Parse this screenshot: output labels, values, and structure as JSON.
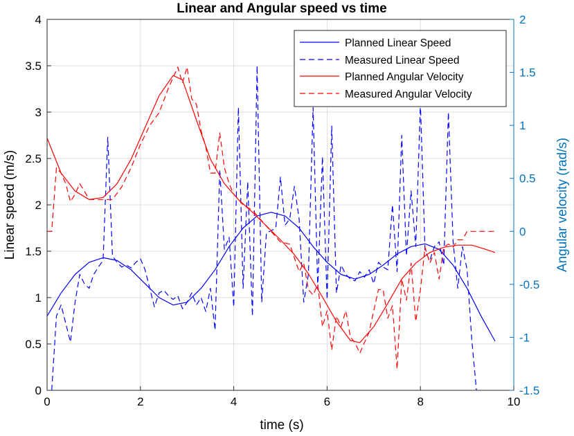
{
  "chart_data": {
    "type": "line",
    "title": "Linear and Angular speed vs time",
    "xlabel": "time (s)",
    "ylabel_left": "Linear speed (m/s)",
    "ylabel_right": "Angular velocity (rad/s)",
    "xlim": [
      0,
      10
    ],
    "ylim_left": [
      0,
      4
    ],
    "ylim_right": [
      -1.5,
      2
    ],
    "xticks": [
      "0",
      "2",
      "4",
      "6",
      "8",
      "10"
    ],
    "yticks_left": [
      "0",
      "0.5",
      "1",
      "1.5",
      "2",
      "2.5",
      "3",
      "3.5",
      "4"
    ],
    "yticks_right": [
      "-1.5",
      "-1",
      "-0.5",
      "0",
      "0.5",
      "1",
      "1.5",
      "2"
    ],
    "grid": true,
    "legend_position": "top-right",
    "colors": {
      "blue": "#0000ff",
      "red": "#ff0000",
      "right_axis": "#0072bd"
    },
    "series": [
      {
        "name": "Planned Linear Speed",
        "axis": "left",
        "color": "#0000ff",
        "style": "solid",
        "x": [
          0,
          0.3,
          0.6,
          0.9,
          1.2,
          1.5,
          1.8,
          2.1,
          2.4,
          2.7,
          3.0,
          3.3,
          3.6,
          3.9,
          4.2,
          4.5,
          4.8,
          5.1,
          5.4,
          5.7,
          6.0,
          6.3,
          6.6,
          6.9,
          7.2,
          7.5,
          7.8,
          8.1,
          8.4,
          8.7,
          9.0,
          9.3,
          9.6
        ],
        "y": [
          0.8,
          1.05,
          1.25,
          1.38,
          1.43,
          1.4,
          1.3,
          1.15,
          1.0,
          0.92,
          0.95,
          1.1,
          1.3,
          1.55,
          1.75,
          1.88,
          1.92,
          1.88,
          1.75,
          1.55,
          1.38,
          1.25,
          1.2,
          1.25,
          1.35,
          1.47,
          1.55,
          1.58,
          1.52,
          1.35,
          1.1,
          0.8,
          0.53
        ]
      },
      {
        "name": "Measured Linear Speed",
        "axis": "left",
        "color": "#0000ff",
        "style": "dashed",
        "x": [
          0.1,
          0.2,
          0.3,
          0.4,
          0.5,
          0.6,
          0.7,
          0.8,
          0.9,
          1.0,
          1.1,
          1.2,
          1.3,
          1.4,
          1.5,
          1.6,
          1.7,
          1.8,
          1.9,
          2.0,
          2.1,
          2.2,
          2.3,
          2.4,
          2.5,
          2.6,
          2.7,
          2.8,
          2.9,
          3.0,
          3.1,
          3.2,
          3.3,
          3.4,
          3.5,
          3.6,
          3.7,
          3.8,
          3.9,
          4.0,
          4.1,
          4.2,
          4.3,
          4.4,
          4.5,
          4.6,
          4.7,
          4.8,
          4.9,
          5.0,
          5.1,
          5.2,
          5.3,
          5.4,
          5.5,
          5.6,
          5.7,
          5.8,
          5.9,
          6.0,
          6.1,
          6.2,
          6.3,
          6.4,
          6.5,
          6.6,
          6.7,
          6.8,
          6.9,
          7.0,
          7.1,
          7.2,
          7.3,
          7.4,
          7.5,
          7.6,
          7.7,
          7.8,
          7.9,
          8.0,
          8.1,
          8.2,
          8.3,
          8.4,
          8.5,
          8.6,
          8.7,
          8.8,
          8.9,
          9.0,
          9.1,
          9.2
        ],
        "y": [
          0.0,
          0.8,
          0.92,
          0.72,
          0.52,
          0.95,
          1.25,
          1.15,
          1.1,
          1.25,
          1.33,
          1.4,
          2.73,
          1.45,
          1.38,
          1.33,
          1.35,
          1.32,
          1.38,
          1.42,
          1.3,
          1.1,
          0.9,
          1.05,
          1.08,
          1.02,
          0.98,
          1.02,
          0.88,
          0.95,
          1.05,
          0.92,
          1.0,
          0.85,
          1.1,
          0.65,
          2.38,
          1.52,
          1.65,
          0.9,
          3.05,
          1.1,
          2.25,
          0.8,
          3.5,
          0.95,
          1.7,
          1.72,
          1.75,
          2.3,
          1.78,
          1.85,
          2.2,
          1.85,
          0.95,
          1.25,
          3.05,
          1.1,
          2.52,
          0.98,
          2.85,
          1.05,
          1.35,
          1.25,
          1.2,
          1.18,
          1.28,
          1.22,
          1.3,
          1.15,
          1.38,
          1.33,
          1.3,
          2.0,
          1.28,
          2.75,
          1.45,
          2.15,
          1.55,
          3.1,
          1.5,
          1.4,
          1.55,
          1.6,
          1.35,
          3.0,
          1.6,
          1.1,
          1.55,
          1.3,
          0.55,
          0.0
        ]
      },
      {
        "name": "Planned Angular Velocity",
        "axis": "right",
        "color": "#ff0000",
        "style": "solid",
        "x": [
          0,
          0.3,
          0.6,
          0.9,
          1.2,
          1.5,
          1.8,
          2.1,
          2.4,
          2.7,
          2.9,
          3.2,
          3.5,
          3.8,
          4.1,
          4.4,
          4.7,
          5.0,
          5.3,
          5.6,
          5.9,
          6.2,
          6.5,
          6.7,
          7.0,
          7.3,
          7.6,
          7.9,
          8.2,
          8.5,
          8.8,
          9.1,
          9.4,
          9.6
        ],
        "y": [
          0.88,
          0.55,
          0.38,
          0.3,
          0.32,
          0.45,
          0.68,
          0.98,
          1.28,
          1.47,
          1.43,
          1.05,
          0.68,
          0.45,
          0.3,
          0.18,
          0.05,
          -0.08,
          -0.22,
          -0.4,
          -0.62,
          -0.85,
          -1.03,
          -1.05,
          -0.9,
          -0.68,
          -0.45,
          -0.3,
          -0.2,
          -0.15,
          -0.13,
          -0.13,
          -0.17,
          -0.2
        ]
      },
      {
        "name": "Measured Angular Velocity",
        "axis": "right",
        "color": "#ff0000",
        "style": "dashed",
        "x": [
          0,
          0.1,
          0.2,
          0.3,
          0.4,
          0.5,
          0.6,
          0.7,
          0.8,
          0.9,
          1.0,
          1.2,
          1.4,
          1.6,
          1.8,
          2.0,
          2.2,
          2.4,
          2.6,
          2.8,
          2.9,
          3.0,
          3.1,
          3.2,
          3.3,
          3.4,
          3.5,
          3.6,
          3.7,
          3.8,
          3.9,
          4.0,
          4.2,
          4.4,
          4.6,
          4.8,
          5.0,
          5.2,
          5.3,
          5.4,
          5.5,
          5.6,
          5.7,
          5.8,
          5.9,
          6.0,
          6.1,
          6.2,
          6.3,
          6.4,
          6.5,
          6.6,
          6.7,
          6.8,
          6.9,
          7.0,
          7.1,
          7.2,
          7.3,
          7.4,
          7.5,
          7.6,
          7.7,
          7.8,
          7.9,
          8.0,
          8.1,
          8.2,
          8.3,
          8.4,
          8.5,
          8.6,
          8.7,
          8.8,
          8.9,
          9.0,
          9.2,
          9.4,
          9.6
        ],
        "y": [
          0.0,
          0.0,
          0.6,
          0.55,
          0.45,
          0.28,
          0.35,
          0.45,
          0.38,
          0.3,
          0.3,
          0.3,
          0.3,
          0.42,
          0.6,
          0.82,
          1.0,
          1.12,
          1.35,
          1.55,
          1.4,
          1.55,
          1.25,
          1.2,
          0.95,
          0.8,
          0.55,
          0.55,
          0.93,
          0.6,
          0.45,
          0.35,
          0.25,
          0.2,
          0.1,
          0.0,
          -0.1,
          -0.12,
          -0.25,
          -0.38,
          -0.3,
          -0.55,
          -0.6,
          -0.5,
          -0.9,
          -0.75,
          -1.12,
          -0.8,
          -0.9,
          -0.75,
          -1.0,
          -1.05,
          -1.15,
          -1.05,
          -0.95,
          -0.75,
          -0.55,
          -0.55,
          -0.82,
          -0.7,
          -1.3,
          -0.45,
          -0.65,
          -0.3,
          -0.85,
          -0.55,
          -0.15,
          -0.3,
          -0.2,
          -0.45,
          -0.15,
          -0.12,
          -0.15,
          -0.08,
          -0.08,
          0.0,
          0.0,
          0.0,
          0.0
        ]
      }
    ]
  }
}
